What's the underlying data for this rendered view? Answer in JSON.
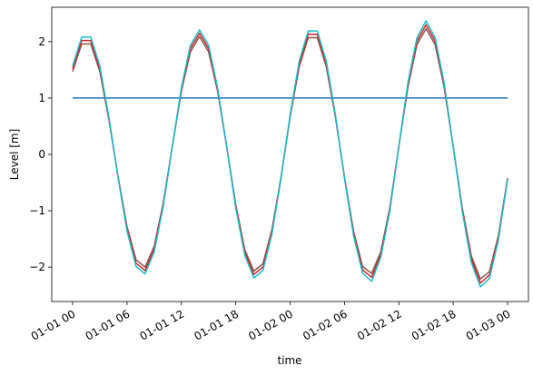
{
  "chart_data": {
    "type": "line",
    "x": [
      "01-01 00",
      "01-01 01",
      "01-01 02",
      "01-01 03",
      "01-01 04",
      "01-01 05",
      "01-01 06",
      "01-01 07",
      "01-01 08",
      "01-01 09",
      "01-01 10",
      "01-01 11",
      "01-01 12",
      "01-01 13",
      "01-01 14",
      "01-01 15",
      "01-01 16",
      "01-01 17",
      "01-01 18",
      "01-01 19",
      "01-01 20",
      "01-01 21",
      "01-01 22",
      "01-01 23",
      "01-02 00",
      "01-02 01",
      "01-02 02",
      "01-02 03",
      "01-02 04",
      "01-02 05",
      "01-02 06",
      "01-02 07",
      "01-02 08",
      "01-02 09",
      "01-02 10",
      "01-02 11",
      "01-02 12",
      "01-02 13",
      "01-02 14",
      "01-02 15",
      "01-02 16",
      "01-02 17",
      "01-02 18",
      "01-02 19",
      "01-02 20",
      "01-02 21",
      "01-02 22",
      "01-02 23",
      "01-03 00"
    ],
    "series": [
      {
        "color": "#1f77b4",
        "values": [
          1,
          1,
          1,
          1,
          1,
          1,
          1,
          1,
          1,
          1,
          1,
          1,
          1,
          1,
          1,
          1,
          1,
          1,
          1,
          1,
          1,
          1,
          1,
          1,
          1,
          1,
          1,
          1,
          1,
          1,
          1,
          1,
          1,
          1,
          1,
          1,
          1,
          1,
          1,
          1,
          1,
          1,
          1,
          1,
          1,
          1,
          1,
          1,
          1
        ]
      },
      {
        "color": "#8c564b",
        "values": [
          1.47,
          1.96,
          1.96,
          1.47,
          0.62,
          -0.38,
          -1.28,
          -1.87,
          -2.0,
          -1.63,
          -0.86,
          0.14,
          1.12,
          1.82,
          2.09,
          1.82,
          1.12,
          0.14,
          -0.89,
          -1.69,
          -2.07,
          -1.94,
          -1.33,
          -0.4,
          0.66,
          1.55,
          2.07,
          2.07,
          1.55,
          0.66,
          -0.4,
          -1.36,
          -1.99,
          -2.11,
          -1.73,
          -0.95,
          0.14,
          1.19,
          1.95,
          2.23,
          1.95,
          1.19,
          0.14,
          -0.95,
          -1.8,
          -2.21,
          -2.08,
          -1.43,
          -0.42
        ]
      },
      {
        "color": "#d62728",
        "values": [
          1.52,
          2.02,
          2.02,
          1.52,
          0.64,
          -0.39,
          -1.32,
          -1.93,
          -2.06,
          -1.68,
          -0.89,
          0.14,
          1.15,
          1.88,
          2.15,
          1.88,
          1.15,
          0.14,
          -0.92,
          -1.74,
          -2.13,
          -2.0,
          -1.37,
          -0.41,
          0.68,
          1.6,
          2.13,
          2.13,
          1.6,
          0.68,
          -0.41,
          -1.4,
          -2.05,
          -2.18,
          -1.78,
          -0.98,
          0.14,
          1.23,
          2.01,
          2.3,
          2.01,
          1.23,
          0.14,
          -0.98,
          -1.86,
          -2.28,
          -2.14,
          -1.47,
          -0.43
        ]
      },
      {
        "color": "#17becf",
        "values": [
          1.57,
          2.08,
          2.08,
          1.57,
          0.66,
          -0.4,
          -1.36,
          -1.99,
          -2.12,
          -1.73,
          -0.92,
          0.14,
          1.18,
          1.94,
          2.21,
          1.94,
          1.18,
          0.14,
          -0.95,
          -1.79,
          -2.19,
          -2.06,
          -1.41,
          -0.42,
          0.7,
          1.65,
          2.19,
          2.19,
          1.65,
          0.7,
          -0.42,
          -1.44,
          -2.11,
          -2.25,
          -1.83,
          -1.01,
          0.14,
          1.27,
          2.07,
          2.37,
          2.07,
          1.27,
          0.14,
          -1.01,
          -1.92,
          -2.35,
          -2.2,
          -1.51,
          -0.44
        ]
      }
    ],
    "xlim": [
      "01-01 00",
      "01-03 00"
    ],
    "xticks": [
      "01-01 00",
      "01-01 06",
      "01-01 12",
      "01-01 18",
      "01-02 00",
      "01-02 06",
      "01-02 12",
      "01-02 18",
      "01-03 00"
    ],
    "ylim": [
      -2.61,
      2.61
    ],
    "yticks": [
      {
        "value": -2,
        "label": "−2"
      },
      {
        "value": -1,
        "label": "−1"
      },
      0,
      1,
      2
    ],
    "xlabel": "time",
    "ylabel": "Level [m]",
    "grid": false
  }
}
